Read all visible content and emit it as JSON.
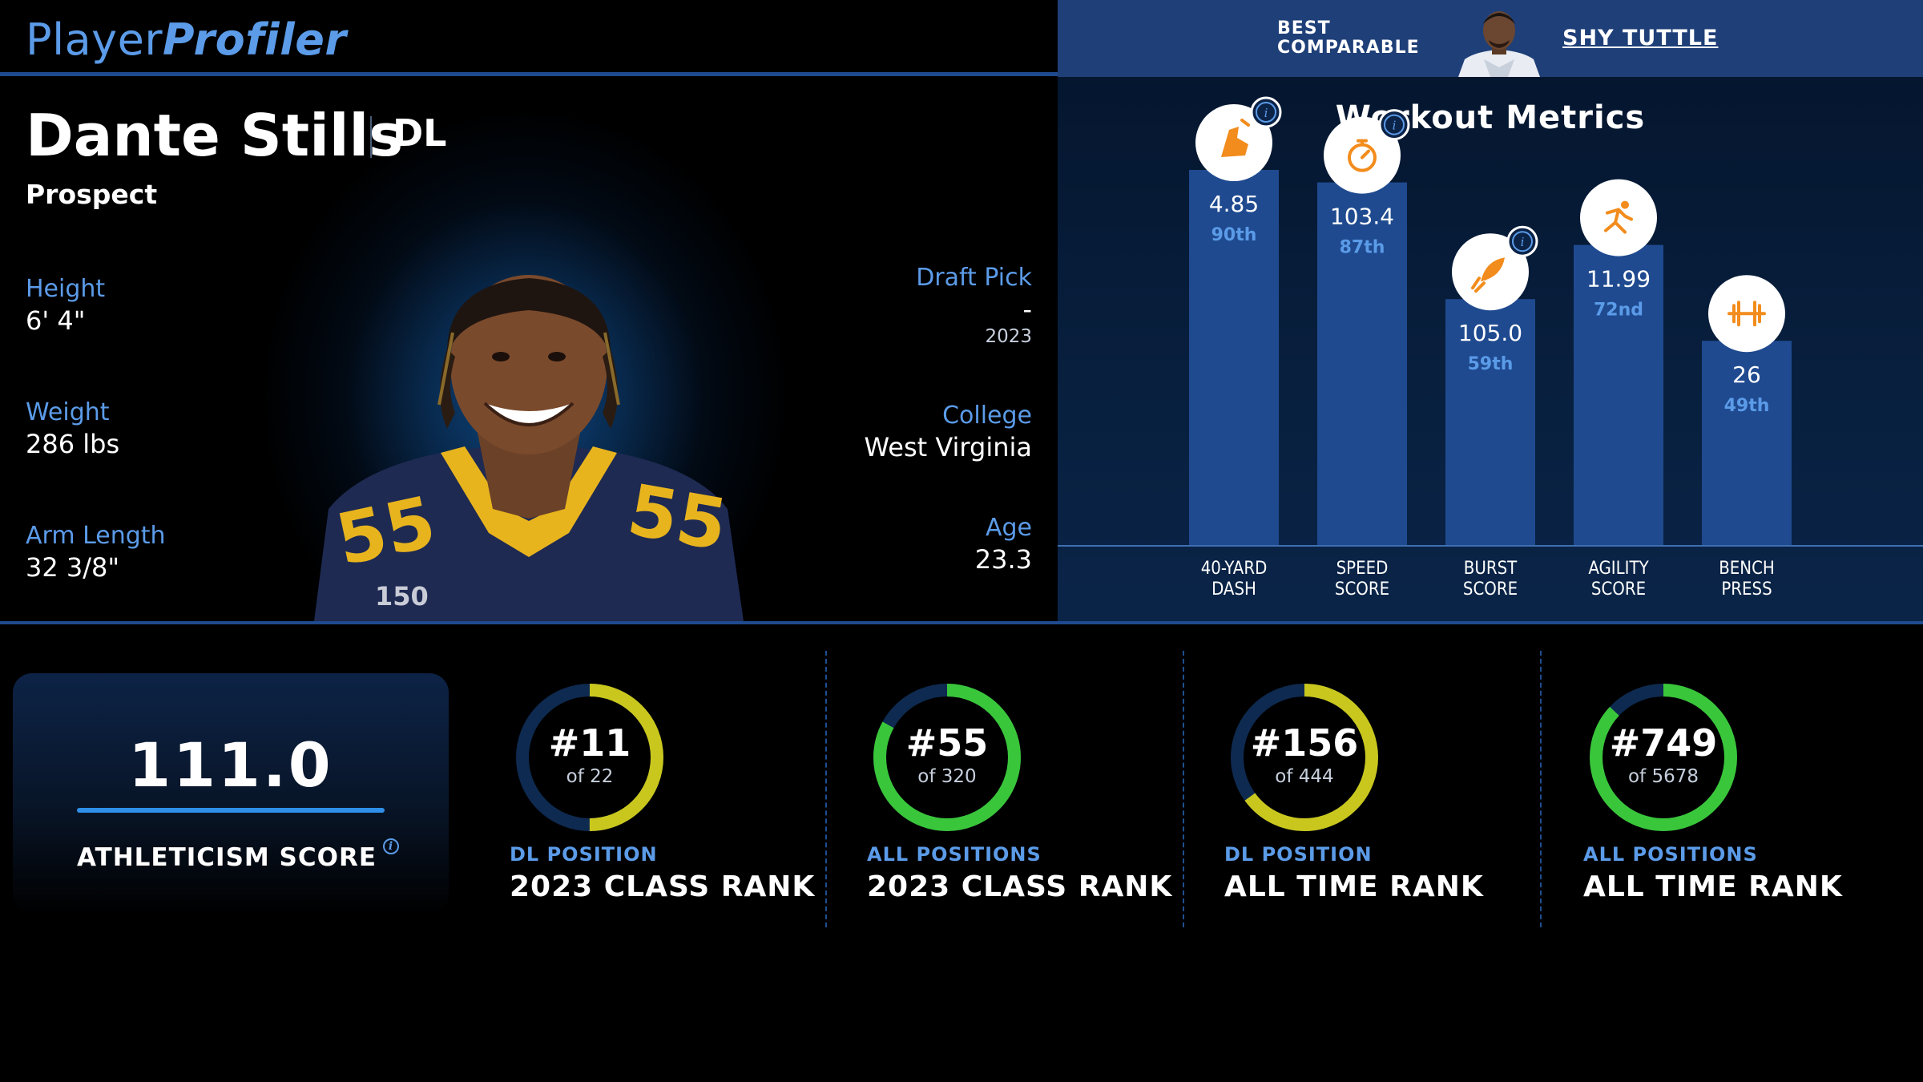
{
  "brand": {
    "part1": "Player",
    "part2": "Profiler"
  },
  "comparable": {
    "label_line1": "BEST",
    "label_line2": "COMPARABLE",
    "name": "SHY TUTTLE"
  },
  "player": {
    "name": "Dante Stills",
    "position": "DL",
    "status": "Prospect",
    "height_label": "Height",
    "height": "6' 4\"",
    "weight_label": "Weight",
    "weight": "286 lbs",
    "arm_label": "Arm Length",
    "arm": "32 3/8\"",
    "draft_label": "Draft Pick",
    "draft_pick": "-",
    "draft_year": "2023",
    "college_label": "College",
    "college": "West Virginia",
    "age_label": "Age",
    "age": "23.3"
  },
  "workout": {
    "title": "Workout Metrics",
    "metrics": [
      {
        "key": "forty",
        "value": "4.85",
        "pct": "90th",
        "label1": "40-YARD",
        "label2": "DASH",
        "icon": "shoe-icon",
        "info": true,
        "bar_level": 0.9
      },
      {
        "key": "speed",
        "value": "103.4",
        "pct": "87th",
        "label1": "SPEED",
        "label2": "SCORE",
        "icon": "stopwatch-icon",
        "info": true,
        "bar_level": 0.87
      },
      {
        "key": "burst",
        "value": "105.0",
        "pct": "59th",
        "label1": "BURST",
        "label2": "SCORE",
        "icon": "rocket-icon",
        "info": true,
        "bar_level": 0.59
      },
      {
        "key": "agility",
        "value": "11.99",
        "pct": "72nd",
        "label1": "AGILITY",
        "label2": "SCORE",
        "icon": "runner-icon",
        "info": false,
        "bar_level": 0.72
      },
      {
        "key": "bench",
        "value": "26",
        "pct": "49th",
        "label1": "BENCH",
        "label2": "PRESS",
        "icon": "dumbbell-icon",
        "info": false,
        "bar_level": 0.49
      }
    ]
  },
  "athleticism": {
    "score": "111.0",
    "label": "ATHLETICISM SCORE"
  },
  "ranks": [
    {
      "rank": "#11",
      "of": "of 22",
      "sub": "DL POSITION",
      "main": "2023 CLASS RANK",
      "fraction": 0.5,
      "color": "#c9c71e"
    },
    {
      "rank": "#55",
      "of": "of 320",
      "sub": "ALL POSITIONS",
      "main": "2023 CLASS RANK",
      "fraction": 0.83,
      "color": "#3ac63a"
    },
    {
      "rank": "#156",
      "of": "of 444",
      "sub": "DL POSITION",
      "main": "ALL TIME RANK",
      "fraction": 0.65,
      "color": "#c9c71e"
    },
    {
      "rank": "#749",
      "of": "of 5678",
      "sub": "ALL POSITIONS",
      "main": "ALL TIME RANK",
      "fraction": 0.87,
      "color": "#3ac63a"
    }
  ],
  "colors": {
    "accent": "#5b9be8",
    "bar": "#1f4a8f",
    "icon_orange": "#f28c1c",
    "ring_track": "#0e2a50"
  }
}
